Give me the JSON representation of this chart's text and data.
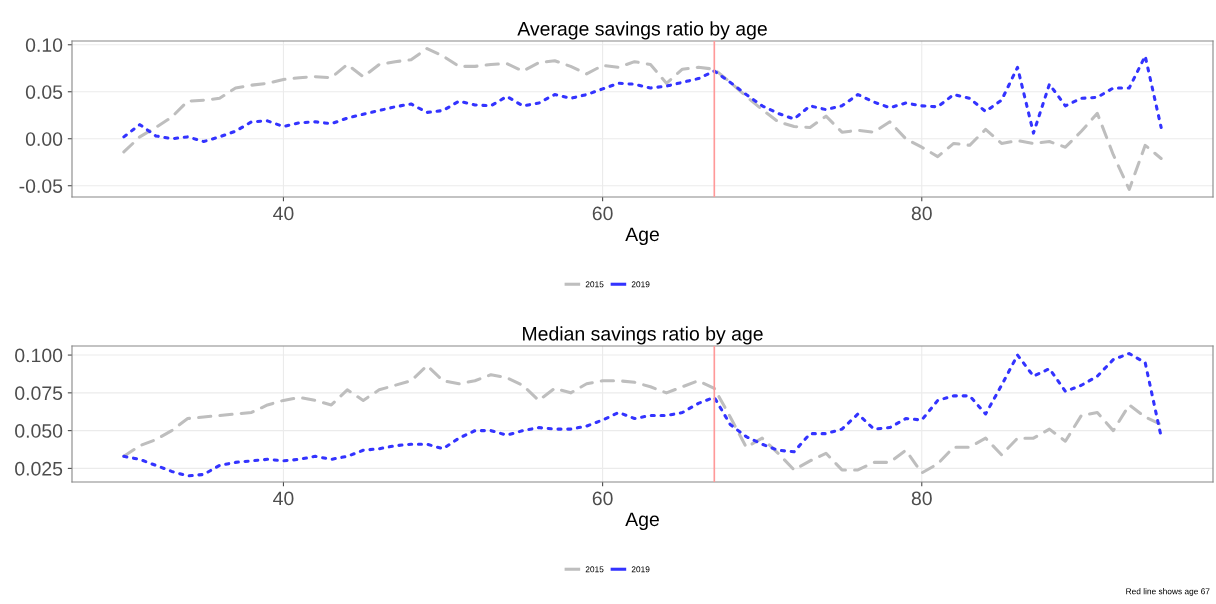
{
  "chart_data": [
    {
      "type": "line",
      "title": "Average savings ratio by age",
      "xlabel": "Age",
      "x": [
        30,
        31,
        32,
        33,
        34,
        35,
        36,
        37,
        38,
        39,
        40,
        41,
        42,
        43,
        44,
        45,
        46,
        47,
        48,
        49,
        50,
        51,
        52,
        53,
        54,
        55,
        56,
        57,
        58,
        59,
        60,
        61,
        62,
        63,
        64,
        65,
        66,
        67,
        68,
        69,
        70,
        71,
        72,
        73,
        74,
        75,
        76,
        77,
        78,
        79,
        80,
        81,
        82,
        83,
        84,
        85,
        86,
        87,
        88,
        89,
        90,
        91,
        92,
        93,
        94,
        95
      ],
      "series": [
        {
          "name": "2015",
          "color": "#bebebe",
          "line_style": "dashed",
          "values": [
            -0.014,
            0.002,
            0.012,
            0.023,
            0.04,
            0.041,
            0.043,
            0.054,
            0.057,
            0.059,
            0.063,
            0.065,
            0.066,
            0.065,
            0.079,
            0.066,
            0.079,
            0.082,
            0.084,
            0.096,
            0.088,
            0.077,
            0.077,
            0.079,
            0.08,
            0.072,
            0.081,
            0.083,
            0.077,
            0.069,
            0.078,
            0.076,
            0.082,
            0.079,
            0.059,
            0.074,
            0.076,
            0.074,
            0.06,
            0.045,
            0.031,
            0.018,
            0.013,
            0.012,
            0.024,
            0.007,
            0.009,
            0.007,
            0.018,
            0.0,
            -0.009,
            -0.019,
            -0.005,
            -0.007,
            0.01,
            -0.005,
            -0.002,
            -0.005,
            -0.003,
            -0.009,
            0.008,
            0.027,
            -0.017,
            -0.054,
            -0.007,
            -0.021
          ]
        },
        {
          "name": "2019",
          "color": "#3333ff",
          "line_style": "dotted",
          "values": [
            0.002,
            0.015,
            0.003,
            0.0,
            0.002,
            -0.003,
            0.002,
            0.008,
            0.018,
            0.019,
            0.013,
            0.017,
            0.018,
            0.016,
            0.022,
            0.026,
            0.03,
            0.034,
            0.037,
            0.028,
            0.03,
            0.04,
            0.036,
            0.035,
            0.045,
            0.035,
            0.038,
            0.047,
            0.043,
            0.047,
            0.053,
            0.059,
            0.058,
            0.054,
            0.056,
            0.06,
            0.064,
            0.072,
            0.06,
            0.047,
            0.035,
            0.027,
            0.021,
            0.035,
            0.031,
            0.035,
            0.047,
            0.039,
            0.033,
            0.038,
            0.035,
            0.034,
            0.047,
            0.043,
            0.029,
            0.041,
            0.076,
            0.006,
            0.058,
            0.035,
            0.043,
            0.044,
            0.054,
            0.054,
            0.088,
            0.012
          ]
        }
      ],
      "xlim": [
        26.75,
        98.25
      ],
      "xticks": [
        40,
        60,
        80
      ],
      "ylim": [
        -0.062,
        0.104
      ],
      "yticks": [
        {
          "value": -0.05,
          "label": "-0.05"
        },
        {
          "value": 0.0,
          "label": "0.00"
        },
        {
          "value": 0.05,
          "label": "0.05"
        },
        {
          "value": 0.1,
          "label": "0.10"
        }
      ],
      "ref_lines": [
        {
          "axis": "x",
          "value": 67,
          "color": "#ff9999"
        }
      ],
      "grid": true,
      "legend": "bottom"
    },
    {
      "type": "line",
      "title": "Median savings ratio by age",
      "xlabel": "Age",
      "x": [
        30,
        31,
        32,
        33,
        34,
        35,
        36,
        37,
        38,
        39,
        40,
        41,
        42,
        43,
        44,
        45,
        46,
        47,
        48,
        49,
        50,
        51,
        52,
        53,
        54,
        55,
        56,
        57,
        58,
        59,
        60,
        61,
        62,
        63,
        64,
        65,
        66,
        67,
        68,
        69,
        70,
        71,
        72,
        73,
        74,
        75,
        76,
        77,
        78,
        79,
        80,
        81,
        82,
        83,
        84,
        85,
        86,
        87,
        88,
        89,
        90,
        91,
        92,
        93,
        94,
        95
      ],
      "series": [
        {
          "name": "2015",
          "color": "#bebebe",
          "line_style": "dashed",
          "values": [
            0.033,
            0.04,
            0.044,
            0.05,
            0.058,
            0.059,
            0.06,
            0.061,
            0.062,
            0.067,
            0.07,
            0.072,
            0.07,
            0.067,
            0.077,
            0.07,
            0.077,
            0.08,
            0.083,
            0.093,
            0.083,
            0.081,
            0.083,
            0.087,
            0.085,
            0.08,
            0.07,
            0.078,
            0.075,
            0.081,
            0.083,
            0.083,
            0.082,
            0.079,
            0.075,
            0.079,
            0.083,
            0.078,
            0.059,
            0.039,
            0.045,
            0.035,
            0.024,
            0.03,
            0.035,
            0.024,
            0.024,
            0.029,
            0.029,
            0.037,
            0.022,
            0.028,
            0.039,
            0.039,
            0.045,
            0.034,
            0.045,
            0.045,
            0.051,
            0.043,
            0.06,
            0.062,
            0.05,
            0.067,
            0.059,
            0.054
          ]
        },
        {
          "name": "2019",
          "color": "#3333ff",
          "line_style": "dotted",
          "values": [
            0.033,
            0.031,
            0.027,
            0.023,
            0.02,
            0.021,
            0.027,
            0.029,
            0.03,
            0.031,
            0.03,
            0.031,
            0.033,
            0.031,
            0.033,
            0.037,
            0.038,
            0.04,
            0.041,
            0.041,
            0.038,
            0.045,
            0.05,
            0.05,
            0.047,
            0.05,
            0.052,
            0.051,
            0.051,
            0.053,
            0.057,
            0.062,
            0.058,
            0.06,
            0.06,
            0.062,
            0.068,
            0.072,
            0.054,
            0.046,
            0.041,
            0.037,
            0.036,
            0.048,
            0.048,
            0.051,
            0.061,
            0.051,
            0.052,
            0.058,
            0.057,
            0.07,
            0.073,
            0.073,
            0.061,
            0.08,
            0.1,
            0.086,
            0.091,
            0.076,
            0.08,
            0.086,
            0.097,
            0.101,
            0.095,
            0.046
          ]
        }
      ],
      "xlim": [
        26.75,
        98.25
      ],
      "xticks": [
        40,
        60,
        80
      ],
      "ylim": [
        0.016,
        0.106
      ],
      "yticks": [
        {
          "value": 0.025,
          "label": "0.025"
        },
        {
          "value": 0.05,
          "label": "0.050"
        },
        {
          "value": 0.075,
          "label": "0.075"
        },
        {
          "value": 0.1,
          "label": "0.100"
        }
      ],
      "ref_lines": [
        {
          "axis": "x",
          "value": 67,
          "color": "#ff9999"
        }
      ],
      "grid": true,
      "legend": "bottom",
      "annotations": [
        "Red line shows age 67"
      ]
    }
  ]
}
